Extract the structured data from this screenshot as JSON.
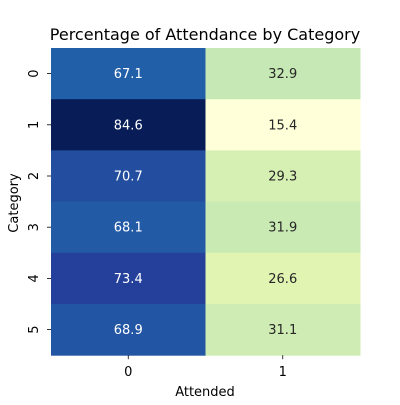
{
  "chart_data": {
    "type": "heatmap",
    "title": "Percentage of Attendance by Category",
    "xlabel": "Attended",
    "ylabel": "Category",
    "x_categories": [
      "0",
      "1"
    ],
    "y_categories": [
      "0",
      "1",
      "2",
      "3",
      "4",
      "5"
    ],
    "values": [
      [
        67.1,
        32.9
      ],
      [
        84.6,
        15.4
      ],
      [
        70.7,
        29.3
      ],
      [
        68.1,
        31.9
      ],
      [
        73.4,
        26.6
      ],
      [
        68.9,
        31.1
      ]
    ],
    "colormap": "YlGnBu",
    "colorbar": false,
    "annotations": true
  }
}
